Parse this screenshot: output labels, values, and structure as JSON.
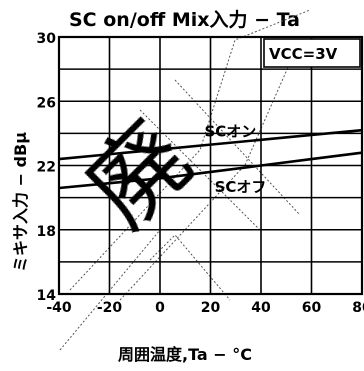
{
  "chart_data": {
    "type": "line",
    "title": "SC on/off Mix入力 − Ta",
    "xlabel": "周囲温度,Ta − °C",
    "ylabel": "ミキサ入力 − dBμ",
    "legend_text": "VCC=3V",
    "legend_position": "top-right",
    "watermark_text": "廃",
    "grid": true,
    "xlim": [
      -40,
      80
    ],
    "ylim": [
      14,
      30
    ],
    "x_ticks": [
      -40,
      -20,
      0,
      20,
      40,
      60,
      80
    ],
    "y_ticks": [
      14,
      18,
      22,
      26,
      30
    ],
    "x": [
      -40,
      -20,
      0,
      20,
      40,
      60,
      80
    ],
    "series": [
      {
        "name": "SCオン",
        "values": [
          22.4,
          22.7,
          23.0,
          23.3,
          23.6,
          23.9,
          24.2
        ]
      },
      {
        "name": "SCオフ",
        "values": [
          20.6,
          20.9,
          21.2,
          21.6,
          22.0,
          22.4,
          22.8
        ]
      }
    ]
  }
}
